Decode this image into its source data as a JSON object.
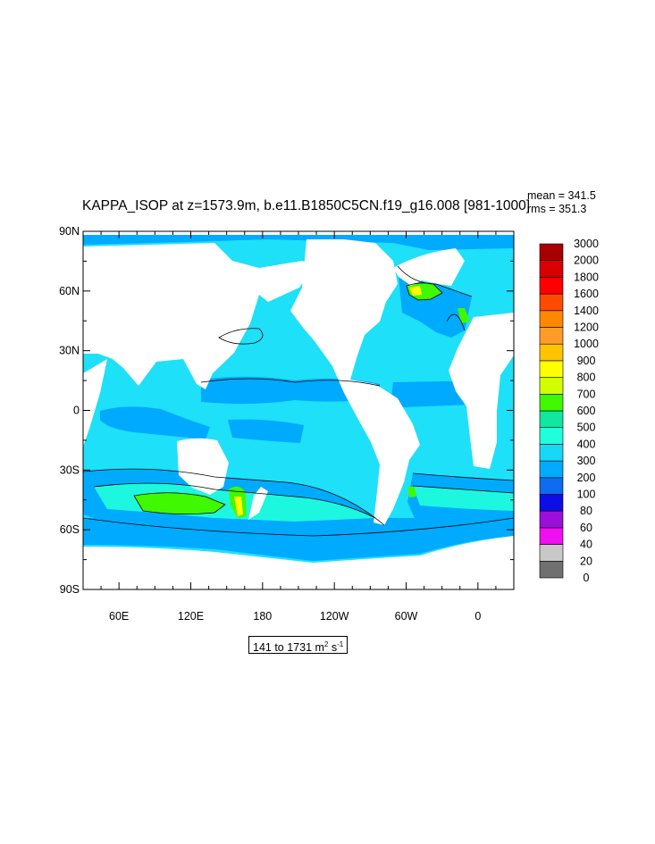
{
  "title": "KAPPA_ISOP at z=1573.9m, b.e11.B1850C5CN.f19_g16.008 [981-1000]",
  "stats": {
    "mean": "mean = 341.5",
    "rms": "rms = 351.3"
  },
  "range": {
    "text": "141 to 1731 m",
    "unit_sup1": "2",
    "unit_mid": " s",
    "unit_sup2": "-1"
  },
  "map": {
    "projection": "cylindrical-equidistant",
    "lon_range": [
      30,
      390
    ],
    "lat_range": [
      -90,
      90
    ],
    "y_ticks": [
      {
        "lat": 90,
        "label": "90N"
      },
      {
        "lat": 60,
        "label": "60N"
      },
      {
        "lat": 30,
        "label": "30N"
      },
      {
        "lat": 0,
        "label": "0"
      },
      {
        "lat": -30,
        "label": "30S"
      },
      {
        "lat": -60,
        "label": "60S"
      },
      {
        "lat": -90,
        "label": "90S"
      }
    ],
    "x_ticks": [
      {
        "lon": 60,
        "label": "60E"
      },
      {
        "lon": 120,
        "label": "120E"
      },
      {
        "lon": 180,
        "label": "180"
      },
      {
        "lon": 240,
        "label": "120W"
      },
      {
        "lon": 300,
        "label": "60W"
      },
      {
        "lon": 360,
        "label": "0"
      }
    ],
    "ocean_base_color": "#1ee0f8",
    "land_color": "#ffffff"
  },
  "colorbar": {
    "levels": [
      "0",
      "20",
      "40",
      "60",
      "80",
      "100",
      "200",
      "300",
      "400",
      "500",
      "600",
      "700",
      "800",
      "900",
      "1000",
      "1200",
      "1400",
      "1600",
      "1800",
      "2000",
      "3000"
    ],
    "colors": [
      "#707070",
      "#c8c8c8",
      "#f00ff0",
      "#9a10d8",
      "#0d0de8",
      "#0d6cf0",
      "#00aaff",
      "#17d8f6",
      "#20ffdc",
      "#10e8a0",
      "#40f800",
      "#d2ff00",
      "#ffff00",
      "#ffc400",
      "#ff9c28",
      "#ff8800",
      "#ff4a00",
      "#ff0000",
      "#d80000",
      "#a80000"
    ]
  }
}
